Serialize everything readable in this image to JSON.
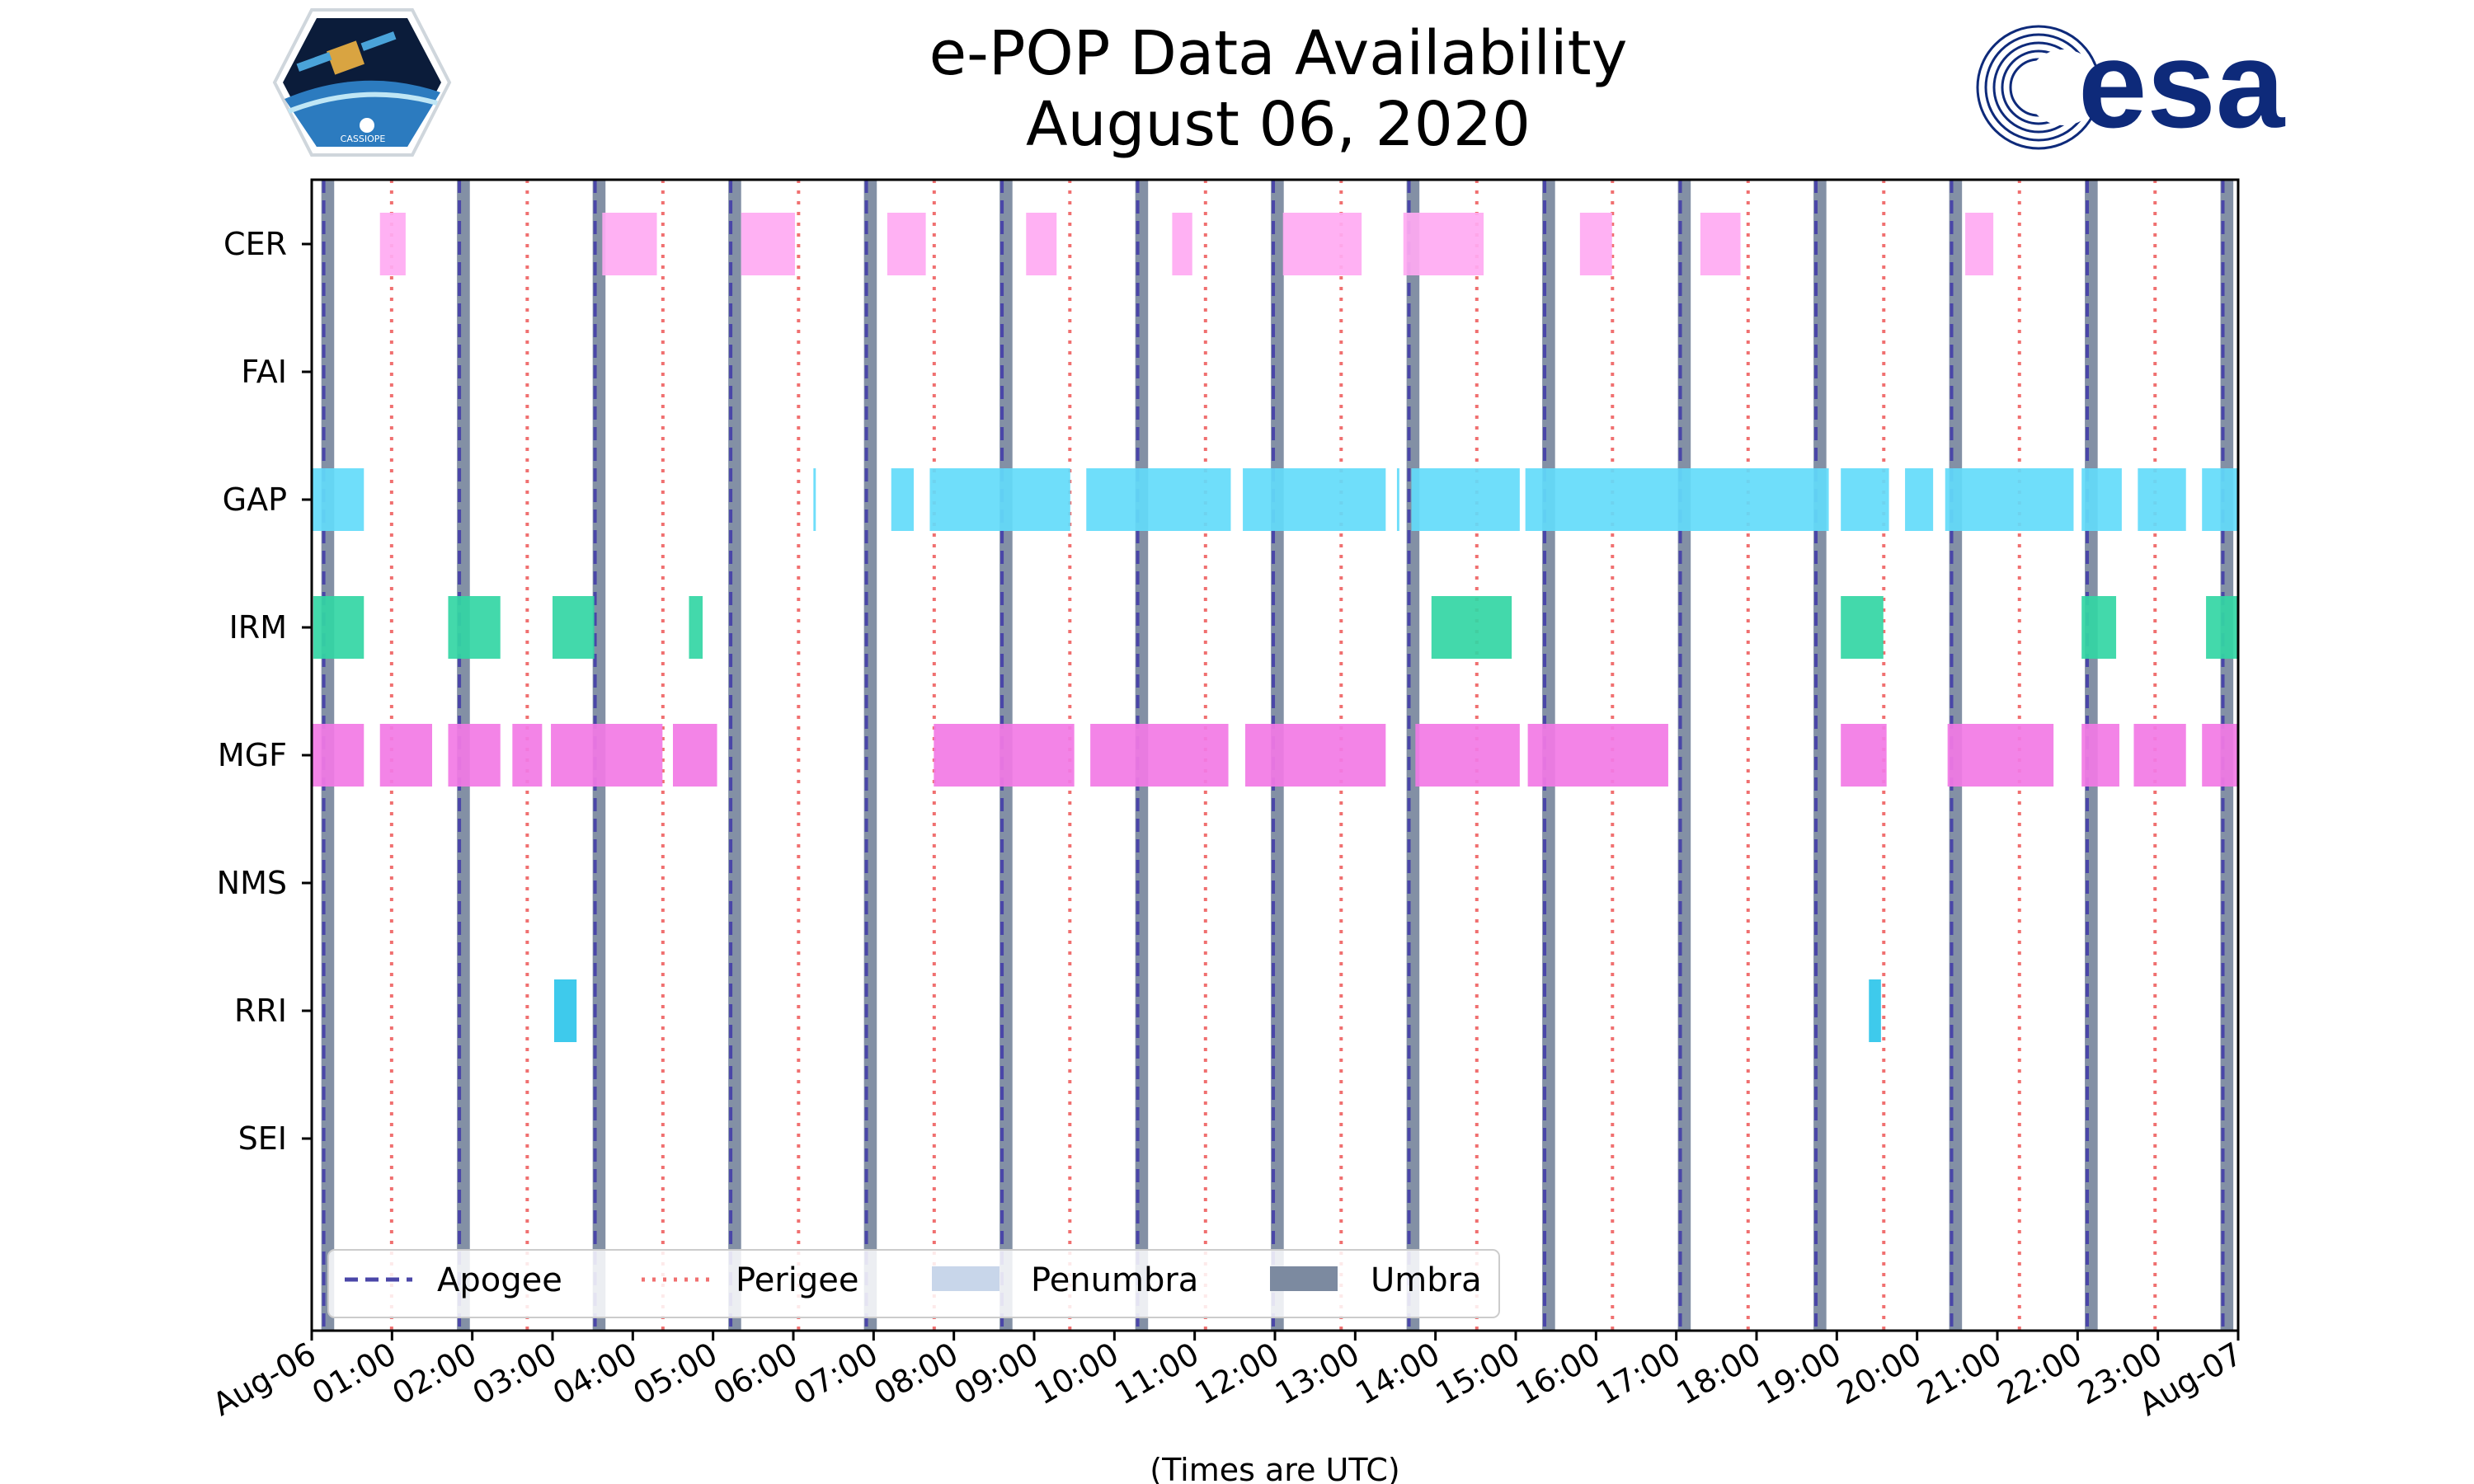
{
  "chart_data": {
    "type": "timeline",
    "title_lines": [
      "e-POP Data Availability",
      "August 06, 2020"
    ],
    "xlabel": "(Times are UTC)",
    "x_range_hours": [
      0,
      24
    ],
    "x_ticks": [
      {
        "hour": 0,
        "label": "Aug-06"
      },
      {
        "hour": 1,
        "label": "01:00"
      },
      {
        "hour": 2,
        "label": "02:00"
      },
      {
        "hour": 3,
        "label": "03:00"
      },
      {
        "hour": 4,
        "label": "04:00"
      },
      {
        "hour": 5,
        "label": "05:00"
      },
      {
        "hour": 6,
        "label": "06:00"
      },
      {
        "hour": 7,
        "label": "07:00"
      },
      {
        "hour": 8,
        "label": "08:00"
      },
      {
        "hour": 9,
        "label": "09:00"
      },
      {
        "hour": 10,
        "label": "10:00"
      },
      {
        "hour": 11,
        "label": "11:00"
      },
      {
        "hour": 12,
        "label": "12:00"
      },
      {
        "hour": 13,
        "label": "13:00"
      },
      {
        "hour": 14,
        "label": "14:00"
      },
      {
        "hour": 15,
        "label": "15:00"
      },
      {
        "hour": 16,
        "label": "16:00"
      },
      {
        "hour": 17,
        "label": "17:00"
      },
      {
        "hour": 18,
        "label": "18:00"
      },
      {
        "hour": 19,
        "label": "19:00"
      },
      {
        "hour": 20,
        "label": "20:00"
      },
      {
        "hour": 21,
        "label": "21:00"
      },
      {
        "hour": 22,
        "label": "22:00"
      },
      {
        "hour": 23,
        "label": "23:00"
      },
      {
        "hour": 24,
        "label": "Aug-07"
      }
    ],
    "instruments": [
      "CER",
      "FAI",
      "GAP",
      "IRM",
      "MGF",
      "NMS",
      "RRI",
      "SEI"
    ],
    "intervals": {
      "CER": [
        [
          0.85,
          1.17
        ],
        [
          3.62,
          4.3
        ],
        [
          5.35,
          6.02
        ],
        [
          7.17,
          7.65
        ],
        [
          8.9,
          9.28
        ],
        [
          10.72,
          10.97
        ],
        [
          12.1,
          13.08
        ],
        [
          13.6,
          14.6
        ],
        [
          15.8,
          16.2
        ],
        [
          17.3,
          17.8
        ],
        [
          20.6,
          20.95
        ]
      ],
      "FAI": [],
      "GAP": [
        [
          0.0,
          0.65
        ],
        [
          6.25,
          6.28
        ],
        [
          7.22,
          7.5
        ],
        [
          7.7,
          9.45
        ],
        [
          9.65,
          11.45
        ],
        [
          11.6,
          13.38
        ],
        [
          13.52,
          13.55
        ],
        [
          13.7,
          15.05
        ],
        [
          15.12,
          18.9
        ],
        [
          19.05,
          19.65
        ],
        [
          19.85,
          20.2
        ],
        [
          20.35,
          21.95
        ],
        [
          22.05,
          22.55
        ],
        [
          22.75,
          23.35
        ],
        [
          23.55,
          24.0
        ]
      ],
      "IRM": [
        [
          0.02,
          0.65
        ],
        [
          1.7,
          2.35
        ],
        [
          3.0,
          3.52
        ],
        [
          4.7,
          4.87
        ],
        [
          13.95,
          14.95
        ],
        [
          19.05,
          19.58
        ],
        [
          22.05,
          22.48
        ],
        [
          23.6,
          24.0
        ]
      ],
      "MGF": [
        [
          0.0,
          0.65
        ],
        [
          0.85,
          1.5
        ],
        [
          1.7,
          2.35
        ],
        [
          2.5,
          2.87
        ],
        [
          2.98,
          4.37
        ],
        [
          4.5,
          5.05
        ],
        [
          7.75,
          9.5
        ],
        [
          9.7,
          11.42
        ],
        [
          11.63,
          13.38
        ],
        [
          13.75,
          15.05
        ],
        [
          15.15,
          16.9
        ],
        [
          19.05,
          19.62
        ],
        [
          20.38,
          21.7
        ],
        [
          22.05,
          22.52
        ],
        [
          22.7,
          23.35
        ],
        [
          23.55,
          24.0
        ]
      ],
      "NMS": [],
      "RRI": [
        [
          3.02,
          3.3
        ],
        [
          19.4,
          19.55
        ]
      ],
      "SEI": []
    },
    "colors": {
      "CER": "#ffaaf2",
      "GAP": "#63dbfa",
      "IRM": "#33d6a4",
      "MGF": "#f27ae5",
      "RRI": "#2ec6ea"
    },
    "apogee_hours": [
      0.15,
      1.84,
      3.53,
      5.22,
      6.91,
      8.6,
      10.29,
      11.98,
      13.67,
      15.36,
      17.05,
      18.74,
      20.43,
      22.12,
      23.81
    ],
    "perigee_hours": [
      0.995,
      2.685,
      4.375,
      6.065,
      7.755,
      9.445,
      11.135,
      12.825,
      14.515,
      16.205,
      17.895,
      19.585,
      21.275,
      22.965
    ],
    "umbra_hours": [
      [
        0.12,
        0.28
      ],
      [
        1.81,
        1.97
      ],
      [
        3.5,
        3.66
      ],
      [
        5.19,
        5.35
      ],
      [
        6.88,
        7.04
      ],
      [
        8.57,
        8.73
      ],
      [
        10.26,
        10.42
      ],
      [
        11.95,
        12.11
      ],
      [
        13.64,
        13.8
      ],
      [
        15.33,
        15.49
      ],
      [
        17.02,
        17.18
      ],
      [
        18.71,
        18.87
      ],
      [
        20.4,
        20.56
      ],
      [
        22.09,
        22.25
      ],
      [
        23.78,
        23.94
      ]
    ],
    "legend": [
      {
        "key": "apogee",
        "label": "Apogee"
      },
      {
        "key": "perigee",
        "label": "Perigee"
      },
      {
        "key": "penumbra",
        "label": "Penumbra"
      },
      {
        "key": "umbra",
        "label": "Umbra"
      }
    ],
    "line_colors": {
      "apogee": "#4a46a8",
      "perigee": "#f07070",
      "penumbra": "#c8d6ea",
      "umbra": "#7c8aa0"
    }
  },
  "logos": {
    "mission_badge_label": "CASSIOPE",
    "agency_wordmark": "esa"
  }
}
